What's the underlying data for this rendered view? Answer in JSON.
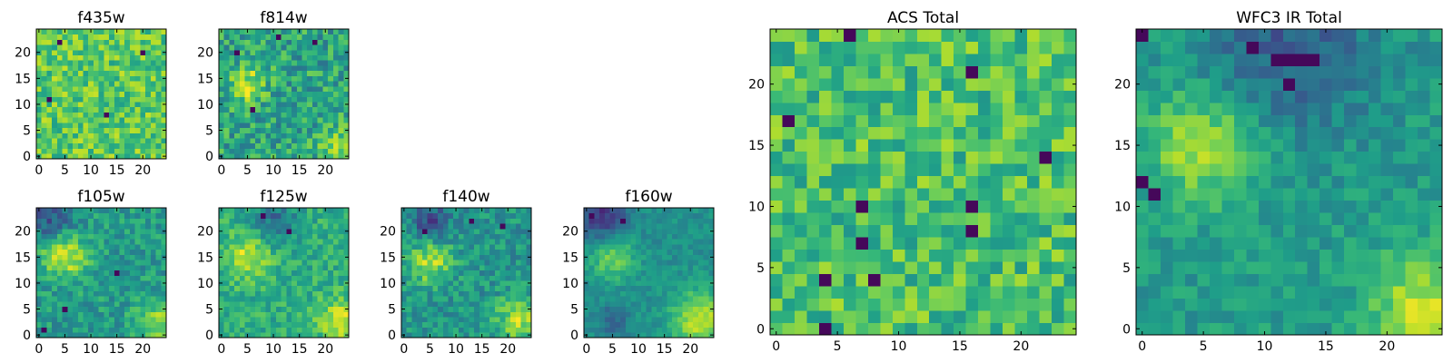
{
  "chart_data": [
    {
      "type": "heatmap",
      "id": "f435w",
      "title": "f435w",
      "grid_size": 25,
      "colormap": "viridis",
      "value_range": [
        0,
        1
      ],
      "xticks": [
        0,
        5,
        10,
        15,
        20
      ],
      "yticks": [
        0,
        5,
        10,
        15,
        20
      ],
      "base": 0.74,
      "noise": 0.18,
      "features": [],
      "dark_pixels": [
        [
          2,
          11
        ],
        [
          20,
          20
        ],
        [
          4,
          22
        ],
        [
          13,
          8
        ]
      ]
    },
    {
      "type": "heatmap",
      "id": "f814w",
      "title": "f814w",
      "grid_size": 25,
      "colormap": "viridis",
      "value_range": [
        0,
        1
      ],
      "xticks": [
        0,
        5,
        10,
        15,
        20
      ],
      "yticks": [
        0,
        5,
        10,
        15,
        20
      ],
      "base": 0.58,
      "noise": 0.2,
      "features": [
        {
          "x": 5,
          "y": 14,
          "r": 2.5,
          "amp": 0.3
        },
        {
          "x": 22,
          "y": 2,
          "r": 2.5,
          "amp": 0.2
        }
      ],
      "dark_pixels": [
        [
          3,
          20
        ],
        [
          11,
          23
        ],
        [
          18,
          22
        ],
        [
          6,
          9
        ]
      ]
    },
    {
      "type": "heatmap",
      "id": "f105w",
      "title": "f105w",
      "grid_size": 25,
      "colormap": "viridis",
      "value_range": [
        0,
        1
      ],
      "xticks": [
        0,
        5,
        10,
        15,
        20
      ],
      "yticks": [
        0,
        5,
        10,
        15,
        20
      ],
      "base": 0.55,
      "noise": 0.14,
      "features": [
        {
          "x": 5,
          "y": 15,
          "r": 3,
          "amp": 0.35
        },
        {
          "x": 23,
          "y": 2,
          "r": 3,
          "amp": 0.3
        },
        {
          "x": 2,
          "y": 23,
          "r": 3,
          "amp": -0.3
        }
      ],
      "dark_pixels": [
        [
          5,
          5
        ],
        [
          15,
          12
        ],
        [
          1,
          1
        ]
      ]
    },
    {
      "type": "heatmap",
      "id": "f125w",
      "title": "f125w",
      "grid_size": 25,
      "colormap": "viridis",
      "value_range": [
        0,
        1
      ],
      "xticks": [
        0,
        5,
        10,
        15,
        20
      ],
      "yticks": [
        0,
        5,
        10,
        15,
        20
      ],
      "base": 0.62,
      "noise": 0.13,
      "features": [
        {
          "x": 5,
          "y": 15,
          "r": 3,
          "amp": 0.3
        },
        {
          "x": 23,
          "y": 3,
          "r": 3,
          "amp": 0.3
        },
        {
          "x": 10,
          "y": 22,
          "r": 3,
          "amp": -0.25
        }
      ],
      "dark_pixels": [
        [
          8,
          23
        ],
        [
          13,
          20
        ]
      ]
    },
    {
      "type": "heatmap",
      "id": "f140w",
      "title": "f140w",
      "grid_size": 25,
      "colormap": "viridis",
      "value_range": [
        0,
        1
      ],
      "xticks": [
        0,
        5,
        10,
        15,
        20
      ],
      "yticks": [
        0,
        5,
        10,
        15,
        20
      ],
      "base": 0.52,
      "noise": 0.14,
      "features": [
        {
          "x": 5,
          "y": 14,
          "r": 3,
          "amp": 0.35
        },
        {
          "x": 22,
          "y": 3,
          "r": 3,
          "amp": 0.35
        },
        {
          "x": 5,
          "y": 22,
          "r": 2.5,
          "amp": -0.3
        }
      ],
      "dark_pixels": [
        [
          13,
          22
        ],
        [
          4,
          20
        ],
        [
          19,
          21
        ]
      ]
    },
    {
      "type": "heatmap",
      "id": "f160w",
      "title": "f160w",
      "grid_size": 25,
      "colormap": "viridis",
      "value_range": [
        0,
        1
      ],
      "xticks": [
        0,
        5,
        10,
        15,
        20
      ],
      "yticks": [
        0,
        5,
        10,
        15,
        20
      ],
      "base": 0.5,
      "noise": 0.08,
      "features": [
        {
          "x": 5,
          "y": 15,
          "r": 3,
          "amp": 0.3
        },
        {
          "x": 22,
          "y": 3,
          "r": 4,
          "amp": 0.4
        },
        {
          "x": 3,
          "y": 23,
          "r": 3.5,
          "amp": -0.35
        },
        {
          "x": 5,
          "y": 3,
          "r": 2,
          "amp": -0.2
        }
      ],
      "dark_pixels": [
        [
          1,
          23
        ],
        [
          7,
          22
        ]
      ]
    },
    {
      "type": "heatmap",
      "id": "acs-total",
      "title": "ACS Total",
      "grid_size": 25,
      "colormap": "viridis",
      "value_range": [
        0,
        1
      ],
      "xticks": [
        0,
        5,
        10,
        15,
        20
      ],
      "yticks": [
        0,
        5,
        10,
        15,
        20
      ],
      "base": 0.7,
      "noise": 0.18,
      "features": [],
      "dark_pixels": [
        [
          6,
          24
        ],
        [
          16,
          21
        ],
        [
          1,
          17
        ],
        [
          22,
          14
        ],
        [
          7,
          10
        ],
        [
          16,
          10
        ],
        [
          16,
          8
        ],
        [
          7,
          7
        ],
        [
          4,
          4
        ],
        [
          8,
          4
        ],
        [
          4,
          0
        ]
      ]
    },
    {
      "type": "heatmap",
      "id": "wfc3-ir-total",
      "title": "WFC3 IR Total",
      "grid_size": 25,
      "colormap": "viridis",
      "value_range": [
        0,
        1
      ],
      "xticks": [
        0,
        5,
        10,
        15,
        20
      ],
      "yticks": [
        0,
        5,
        10,
        15,
        20
      ],
      "base": 0.55,
      "noise": 0.1,
      "features": [
        {
          "x": 5,
          "y": 15,
          "r": 3,
          "amp": 0.35
        },
        {
          "x": 23,
          "y": 2,
          "r": 3,
          "amp": 0.35
        },
        {
          "x": 12,
          "y": 23,
          "r": 5,
          "amp": -0.25
        }
      ],
      "dark_pixels": [
        [
          0,
          24
        ],
        [
          9,
          23
        ],
        [
          11,
          22
        ],
        [
          12,
          22
        ],
        [
          13,
          22
        ],
        [
          14,
          22
        ],
        [
          12,
          20
        ],
        [
          1,
          11
        ],
        [
          0,
          12
        ]
      ]
    }
  ]
}
